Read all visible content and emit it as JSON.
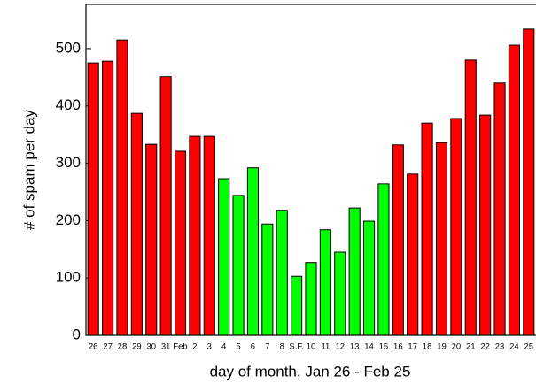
{
  "chart_data": {
    "type": "bar",
    "xlabel": "day of month, Jan 26 - Feb 25",
    "ylabel": "# of spam per day",
    "categories": [
      "26",
      "27",
      "28",
      "29",
      "30",
      "31",
      "Feb",
      "2",
      "3",
      "4",
      "5",
      "6",
      "7",
      "8",
      "S.F.",
      "10",
      "11",
      "12",
      "13",
      "14",
      "15",
      "16",
      "17",
      "18",
      "19",
      "20",
      "21",
      "22",
      "23",
      "24",
      "25"
    ],
    "values": [
      475,
      478,
      515,
      387,
      333,
      451,
      321,
      347,
      347,
      273,
      244,
      292,
      194,
      218,
      103,
      127,
      184,
      145,
      222,
      199,
      264,
      332,
      281,
      370,
      336,
      378,
      480,
      384,
      440,
      506,
      534
    ],
    "colors": [
      "#ff0000",
      "#ff0000",
      "#ff0000",
      "#ff0000",
      "#ff0000",
      "#ff0000",
      "#ff0000",
      "#ff0000",
      "#ff0000",
      "#00ff00",
      "#00ff00",
      "#00ff00",
      "#00ff00",
      "#00ff00",
      "#00ff00",
      "#00ff00",
      "#00ff00",
      "#00ff00",
      "#00ff00",
      "#00ff00",
      "#00ff00",
      "#ff0000",
      "#ff0000",
      "#ff0000",
      "#ff0000",
      "#ff0000",
      "#ff0000",
      "#ff0000",
      "#ff0000",
      "#ff0000",
      "#ff0000"
    ],
    "ylim": [
      0,
      577
    ],
    "yticks": [
      0,
      100,
      200,
      300,
      400,
      500
    ]
  }
}
